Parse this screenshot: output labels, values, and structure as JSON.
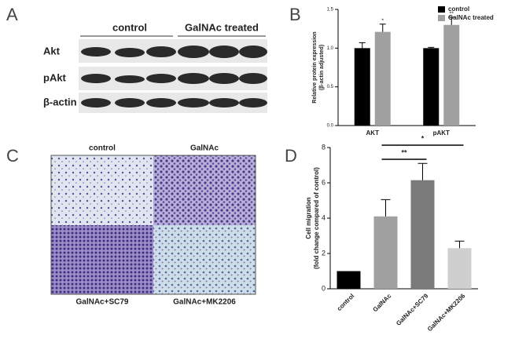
{
  "panel_labels": [
    "A",
    "B",
    "C",
    "D"
  ],
  "blot": {
    "groups": [
      "control",
      "GalNAc treated"
    ],
    "rows": [
      "Akt",
      "pAkt",
      "β-actin"
    ]
  },
  "micrographs": {
    "labels": [
      "control",
      "GalNAc",
      "GalNAc+SC79",
      "GalNAc+MK2206"
    ]
  },
  "chart_data": [
    {
      "type": "grouped-bar",
      "ylabel": [
        "Relative protein expression",
        "(β-actin adjusted)"
      ],
      "categories": [
        "AKT",
        "pAKT"
      ],
      "series": [
        {
          "name": "control",
          "color": "#000000",
          "values": [
            1.0,
            1.0
          ],
          "errors": [
            0.07,
            0.01
          ]
        },
        {
          "name": "GalNAc treated",
          "color": "#a0a0a0",
          "values": [
            1.21,
            1.3
          ],
          "errors": [
            0.1,
            0.1
          ],
          "annotations": [
            "*",
            "**"
          ]
        }
      ],
      "ylim": [
        0,
        1.5
      ],
      "yticks": [
        {
          "value": 0,
          "label": "0.0"
        },
        {
          "value": 0.5,
          "label": "0.5"
        },
        {
          "value": 1,
          "label": "1.0"
        },
        {
          "value": 1.5,
          "label": "1.5"
        }
      ],
      "legend": "top-right"
    },
    {
      "type": "bar",
      "ylabel": [
        "Cell migration",
        "(fold change compared of control)"
      ],
      "categories": [
        "control",
        "GalNAc",
        "GalNAc+SC79",
        "GalNAc+MK2206"
      ],
      "values": [
        1,
        4.1,
        6.15,
        2.3
      ],
      "errors": [
        0,
        0.95,
        0.95,
        0.4
      ],
      "colors": [
        "#000000",
        "#a0a0a0",
        "#7a7a7a",
        "#cfcfcf"
      ],
      "ylim": [
        0,
        8
      ],
      "yticks": [
        0,
        2,
        4,
        6,
        8
      ],
      "significance": [
        {
          "from": 1,
          "to": 2,
          "label": "**"
        },
        {
          "from": 1,
          "to": 3,
          "label": "*"
        }
      ]
    }
  ]
}
